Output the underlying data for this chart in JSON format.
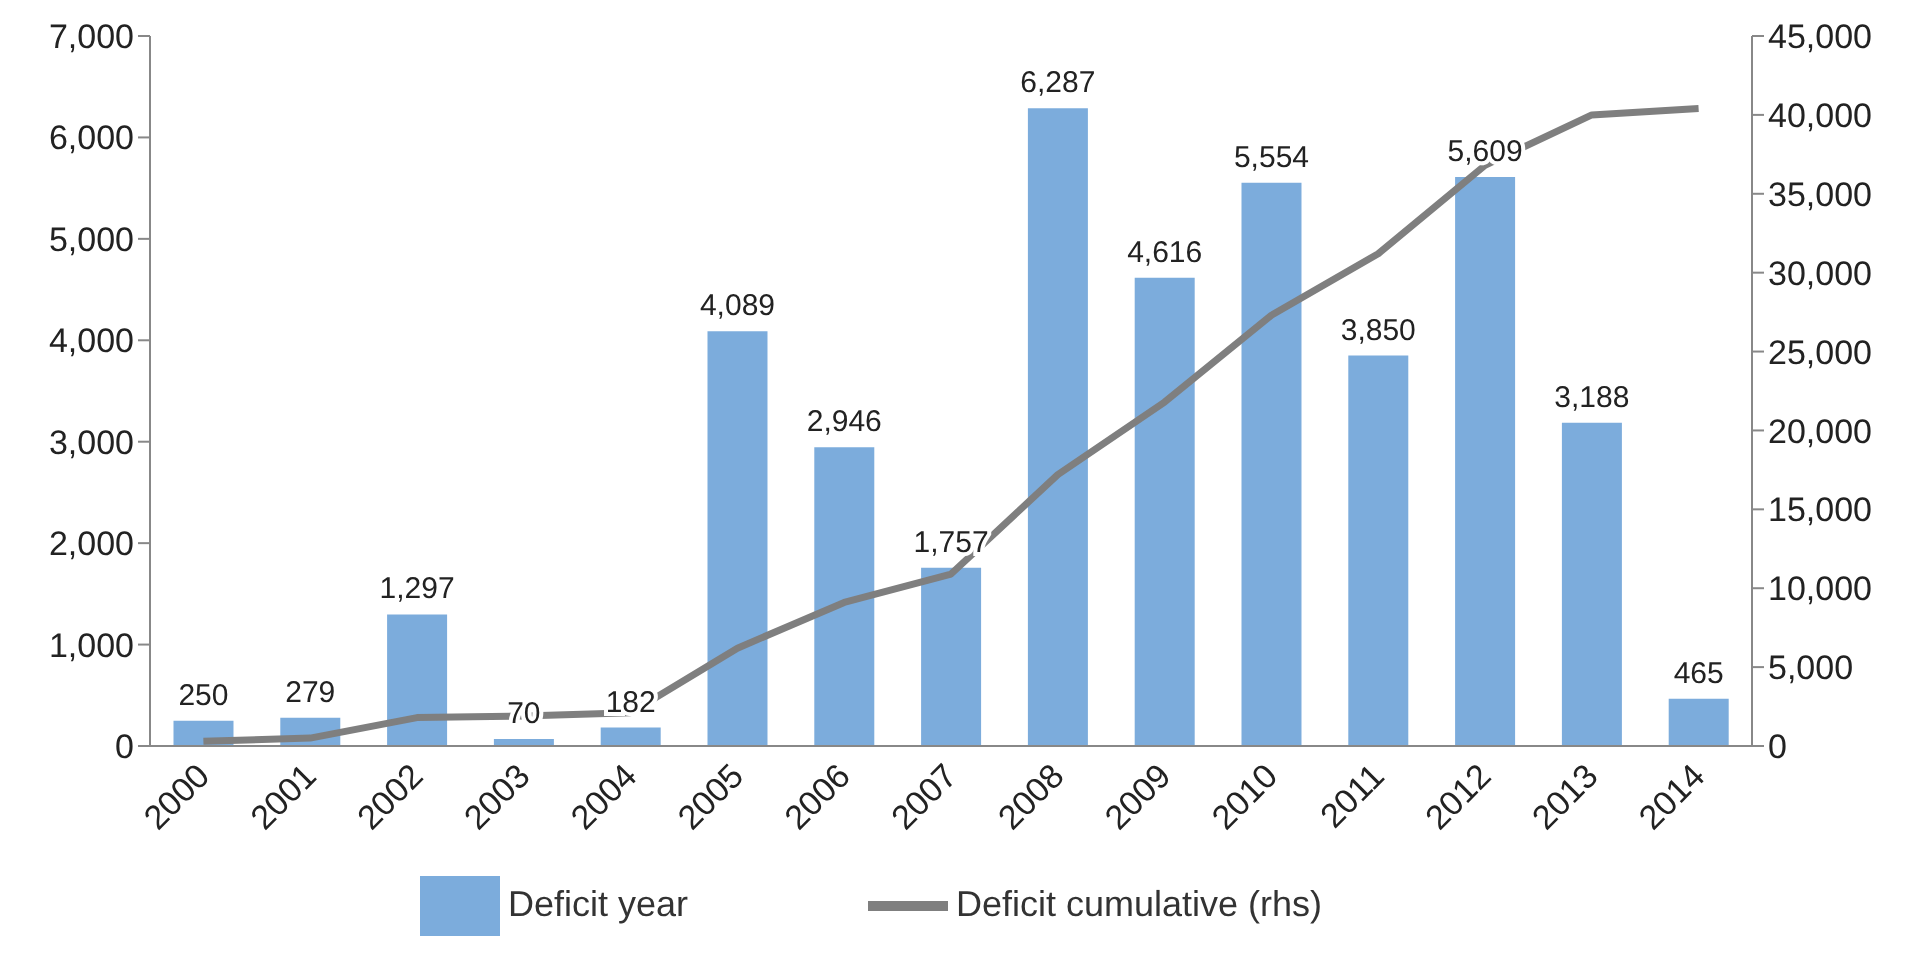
{
  "chart_data": {
    "type": "bar",
    "categories": [
      "2000",
      "2001",
      "2002",
      "2003",
      "2004",
      "2005",
      "2006",
      "2007",
      "2008",
      "2009",
      "2010",
      "2011",
      "2012",
      "2013",
      "2014"
    ],
    "series": [
      {
        "name": "Deficit year",
        "color": "#7cacdc",
        "values": [
          250,
          279,
          1297,
          70,
          182,
          4089,
          2946,
          1757,
          6287,
          4616,
          5554,
          3850,
          5609,
          3188,
          465
        ],
        "value_labels": [
          "250",
          "279",
          "1,297",
          "70",
          "182",
          "4,089",
          "2,946",
          "1,757",
          "6,287",
          "4,616",
          "5,554",
          "3,850",
          "5,609",
          "3,188",
          "465"
        ]
      },
      {
        "name": "Deficit cumulative (rhs)",
        "type": "line",
        "axis": "y2",
        "color": "#7f7f7f",
        "values": [
          300,
          500,
          1800,
          1900,
          2100,
          6200,
          9100,
          10900,
          17200,
          21800,
          27300,
          31200,
          36800,
          40000,
          40400
        ]
      }
    ],
    "ylim": [
      0,
      7000
    ],
    "yticks": [
      0,
      {
        "value": 1000,
        "label": "1,000"
      },
      {
        "value": 2000,
        "label": "2,000"
      },
      {
        "value": 3000,
        "label": "3,000"
      },
      {
        "value": 4000,
        "label": "4,000"
      },
      {
        "value": 5000,
        "label": "5,000"
      },
      {
        "value": 6000,
        "label": "6,000"
      },
      {
        "value": 7000,
        "label": "7,000"
      }
    ],
    "y2lim": [
      0,
      45000
    ],
    "y2ticks": [
      0,
      {
        "value": 5000,
        "label": "5,000"
      },
      {
        "value": 10000,
        "label": "10,000"
      },
      {
        "value": 15000,
        "label": "15,000"
      },
      {
        "value": 20000,
        "label": "20,000"
      },
      {
        "value": 25000,
        "label": "25,000"
      },
      {
        "value": 30000,
        "label": "30,000"
      },
      {
        "value": 35000,
        "label": "35,000"
      },
      {
        "value": 40000,
        "label": "40,000"
      },
      {
        "value": 45000,
        "label": "45,000"
      }
    ],
    "grid": false,
    "legend": "bottom",
    "marker": "none",
    "line_style": "solid"
  }
}
